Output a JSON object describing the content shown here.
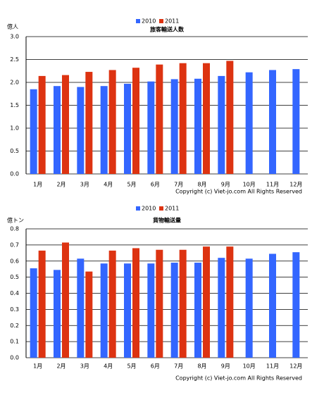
{
  "chart_data": [
    {
      "type": "bar",
      "title": "旅客輸送人数",
      "y_label": "億人",
      "copyright": "Copyright (c) Viet-jo.com All Rights Reserved",
      "categories": [
        "1月",
        "2月",
        "3月",
        "4月",
        "5月",
        "6月",
        "7月",
        "8月",
        "9月",
        "10月",
        "11月",
        "12月"
      ],
      "series": [
        {
          "name": "2010",
          "color": "#3366ff",
          "values": [
            1.85,
            1.92,
            1.9,
            1.92,
            1.97,
            2.02,
            2.07,
            2.08,
            2.14,
            2.22,
            2.27,
            2.29
          ]
        },
        {
          "name": "2011",
          "color": "#dd3311",
          "values": [
            2.14,
            2.16,
            2.23,
            2.27,
            2.32,
            2.39,
            2.42,
            2.42,
            2.47,
            null,
            null,
            null
          ]
        }
      ],
      "ylim": [
        0,
        3
      ],
      "yticks": [
        {
          "value": 0,
          "label": "0.0"
        },
        0.5,
        {
          "value": 1,
          "label": "1.0"
        },
        1.5,
        {
          "value": 2,
          "label": "2.0"
        },
        2.5,
        {
          "value": 3,
          "label": "3.0"
        }
      ],
      "grid": true
    },
    {
      "type": "bar",
      "title": "貨物輸送量",
      "y_label": "億トン",
      "copyright": "Copyright (c) Viet-jo.com All Rights Reserved",
      "categories": [
        "1月",
        "2月",
        "3月",
        "4月",
        "5月",
        "6月",
        "7月",
        "8月",
        "9月",
        "10月",
        "11月",
        "12月"
      ],
      "series": [
        {
          "name": "2010",
          "color": "#3366ff",
          "values": [
            0.555,
            0.545,
            0.615,
            0.585,
            0.585,
            0.585,
            0.59,
            0.59,
            0.62,
            0.615,
            0.645,
            0.655
          ]
        },
        {
          "name": "2011",
          "color": "#dd3311",
          "values": [
            0.665,
            0.715,
            0.535,
            0.665,
            0.68,
            0.67,
            0.67,
            0.69,
            0.69,
            null,
            null,
            null
          ]
        }
      ],
      "ylim": [
        0,
        0.8
      ],
      "yticks": [
        {
          "value": 0,
          "label": "0.0"
        },
        0.1,
        0.2,
        0.3,
        0.4,
        0.5,
        0.6,
        0.7,
        0.8
      ],
      "grid": true
    }
  ]
}
